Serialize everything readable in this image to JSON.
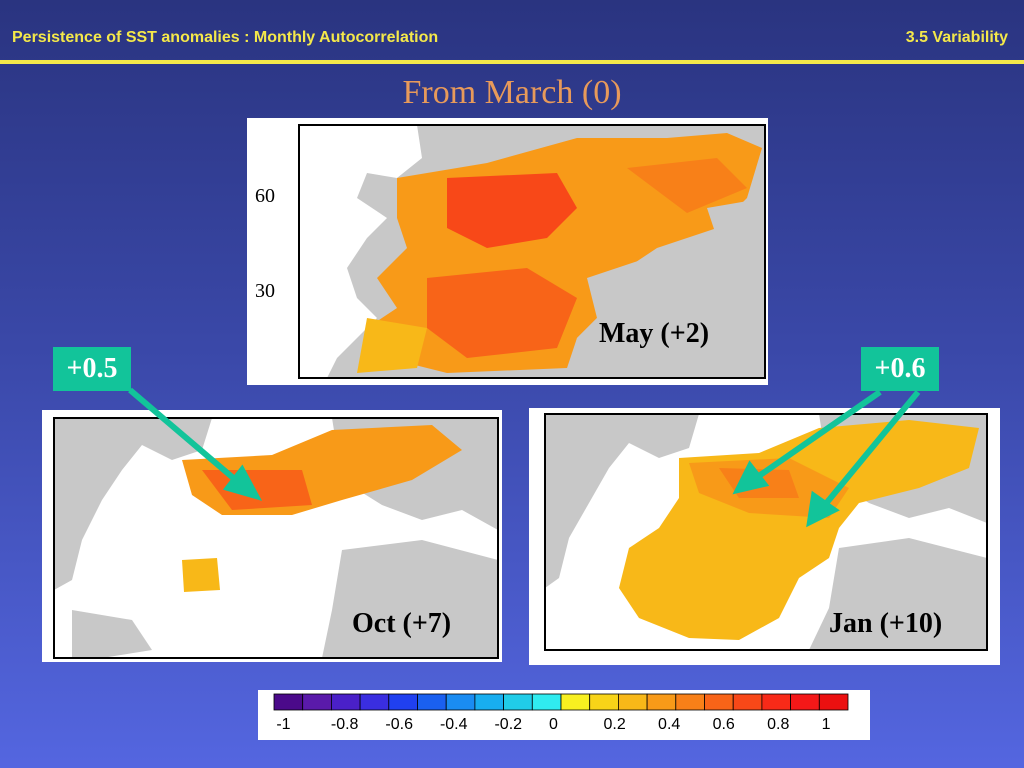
{
  "header": {
    "title": "Persistence of SST anomalies : Monthly Autocorrelation",
    "section": "3.5 Variability"
  },
  "subtitle": "From March (0)",
  "panels": {
    "may": {
      "label": "May (+2)",
      "lat_labels": [
        "60",
        "30"
      ]
    },
    "oct": {
      "label": "Oct (+7)"
    },
    "jan": {
      "label": "Jan (+10)"
    }
  },
  "annotations": {
    "left_badge": "+0.5",
    "right_badge": "+0.6"
  },
  "colorbar": {
    "ticks": [
      "-1",
      "-0.8",
      "-0.6",
      "-0.4",
      "-0.2",
      "0",
      "0.2",
      "0.4",
      "0.6",
      "0.8",
      "1"
    ],
    "colors": [
      "#4b0a8a",
      "#5a1aaa",
      "#4a20c8",
      "#3a2ee0",
      "#2040f0",
      "#1a60f0",
      "#1a8cf2",
      "#18aef0",
      "#20cce8",
      "#30ecf0",
      "#f8f020",
      "#f8d418",
      "#f8b818",
      "#f89a18",
      "#f88018",
      "#f86418",
      "#f84818",
      "#f82a18",
      "#f41818",
      "#ec1010"
    ],
    "land_color": "#c8c8c8",
    "accent_color": "#12c49a"
  }
}
